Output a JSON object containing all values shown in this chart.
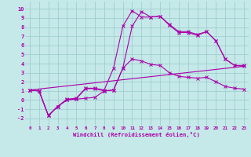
{
  "xlabel": "Windchill (Refroidissement éolien,°C)",
  "xlim": [
    -0.5,
    23.5
  ],
  "ylim": [
    -2.8,
    10.8
  ],
  "xticks": [
    0,
    1,
    2,
    3,
    4,
    5,
    6,
    7,
    8,
    9,
    10,
    11,
    12,
    13,
    14,
    15,
    16,
    17,
    18,
    19,
    20,
    21,
    22,
    23
  ],
  "yticks": [
    -2,
    -1,
    0,
    1,
    2,
    3,
    4,
    5,
    6,
    7,
    8,
    9,
    10
  ],
  "bg_color": "#c5e8e8",
  "grid_color": "#9fcece",
  "line_color": "#aa00aa",
  "lines": [
    {
      "x": [
        0,
        1,
        2,
        3,
        4,
        5,
        6,
        7,
        8,
        9,
        10,
        11,
        12,
        13,
        14,
        15,
        16,
        17,
        18,
        19,
        20,
        21,
        22,
        23
      ],
      "y": [
        1.1,
        1.0,
        -1.7,
        -0.7,
        0.1,
        0.2,
        1.3,
        1.3,
        1.1,
        3.5,
        8.1,
        9.8,
        9.1,
        9.1,
        9.2,
        8.3,
        7.5,
        7.5,
        7.2,
        7.5,
        6.5,
        4.5,
        3.8,
        3.8
      ]
    },
    {
      "x": [
        0,
        1,
        2,
        3,
        4,
        5,
        6,
        7,
        8,
        9,
        10,
        11,
        12,
        13,
        14,
        15,
        16,
        17,
        18,
        19,
        20,
        21,
        22,
        23
      ],
      "y": [
        1.1,
        1.0,
        -1.7,
        -0.7,
        0.05,
        0.15,
        1.25,
        1.25,
        1.0,
        1.1,
        3.5,
        8.1,
        9.7,
        9.1,
        9.2,
        8.2,
        7.4,
        7.4,
        7.1,
        7.5,
        6.5,
        4.5,
        3.8,
        3.7
      ]
    },
    {
      "x": [
        0,
        1,
        2,
        3,
        4,
        5,
        6,
        7,
        8,
        9,
        10,
        11,
        12,
        13,
        14,
        15,
        16,
        17,
        18,
        19,
        20,
        21,
        22,
        23
      ],
      "y": [
        1.1,
        1.0,
        -1.7,
        -0.7,
        0.0,
        0.1,
        0.2,
        0.3,
        1.0,
        1.1,
        3.5,
        4.5,
        4.3,
        3.9,
        3.8,
        3.0,
        2.6,
        2.5,
        2.4,
        2.5,
        2.0,
        1.5,
        1.3,
        1.2
      ]
    },
    {
      "x": [
        0,
        23
      ],
      "y": [
        1.1,
        3.7
      ],
      "no_marker": true
    }
  ]
}
